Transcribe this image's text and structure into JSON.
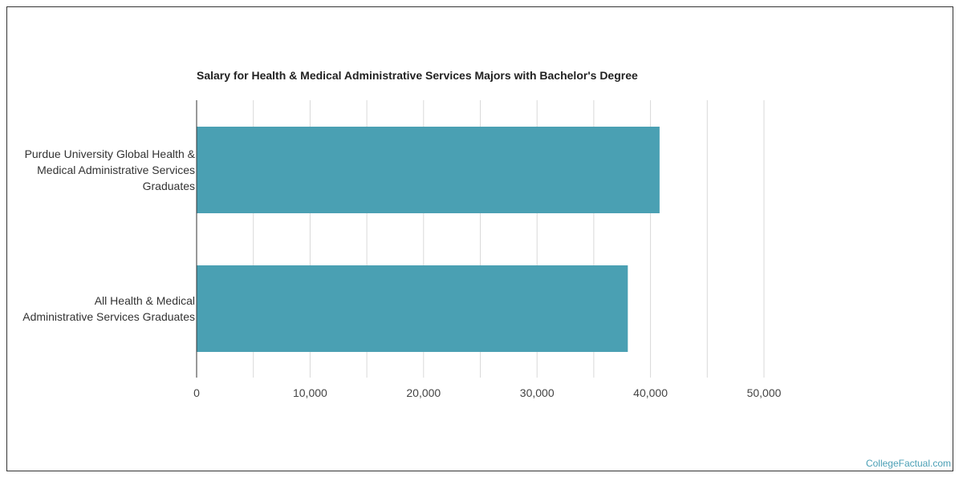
{
  "chart_data": {
    "type": "bar",
    "orientation": "horizontal",
    "title": "Salary for Health & Medical Administrative Services Majors with Bachelor's Degree",
    "categories": [
      "Purdue University Global Health & Medical Administrative Services Graduates",
      "All Health & Medical Administrative Services Graduates"
    ],
    "category_lines": [
      [
        "Purdue University Global Health &",
        "Medical Administrative Services",
        "Graduates"
      ],
      [
        "All Health & Medical",
        "Administrative Services Graduates"
      ]
    ],
    "values": [
      40800,
      38000
    ],
    "xlim": [
      0,
      50000
    ],
    "x_ticks": [
      0,
      10000,
      20000,
      30000,
      40000,
      50000
    ],
    "x_tick_labels": [
      "0",
      "10,000",
      "20,000",
      "30,000",
      "40,000",
      "50,000"
    ],
    "grid": true,
    "bar_color": "#4aa0b3",
    "grid_color": "#d9d9d9",
    "axis_color": "#333333"
  },
  "footer": {
    "source_label": "CollegeFactual.com"
  }
}
